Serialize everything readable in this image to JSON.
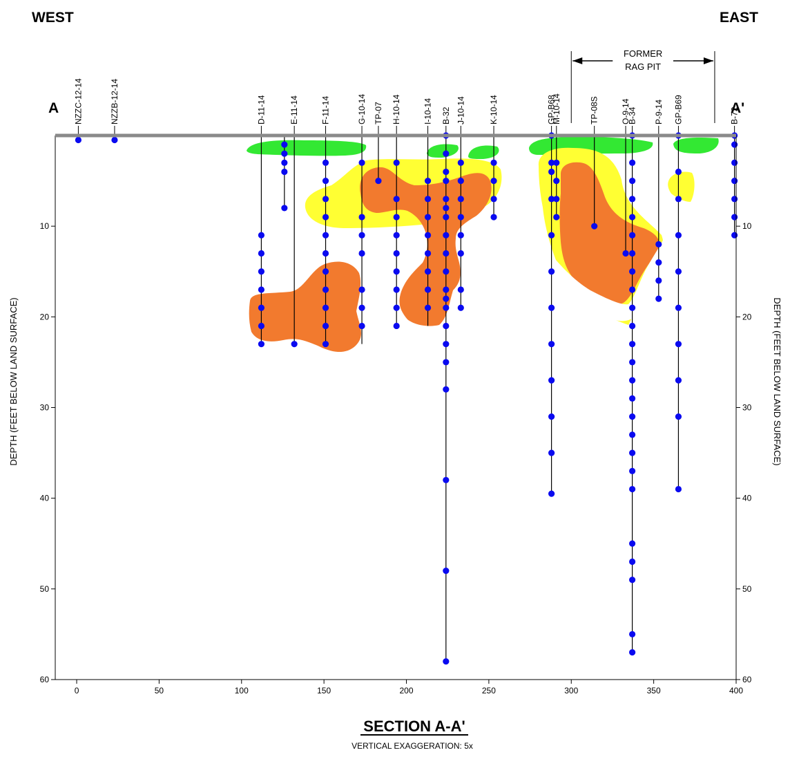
{
  "chart_data": {
    "type": "scatter",
    "title": "SECTION A-A'",
    "subtitle": "VERTICAL EXAGGERATION: 5x",
    "left_label": "WEST",
    "right_label": "EAST",
    "section_start": "A",
    "section_end": "A'",
    "ylabel_left": "DEPTH (FEET BELOW LAND SURFACE)",
    "ylabel_right": "DEPTH (FEET BELOW LAND SURFACE)",
    "xlim": [
      -13,
      400
    ],
    "ylim": [
      0,
      60
    ],
    "x_ticks": [
      "0",
      "50",
      "100",
      "150",
      "200",
      "250",
      "300",
      "350",
      "400"
    ],
    "y_ticks": [
      "10",
      "20",
      "30",
      "40",
      "50",
      "60"
    ],
    "annotation": {
      "text_line1": "FORMER",
      "text_line2": "RAG PIT",
      "x_start": 300,
      "x_end": 387
    },
    "colors": {
      "green": "#33e833",
      "yellow": "#ffff33",
      "orange": "#f27a2e",
      "dots": "#0a0af0",
      "ground": "#8a8a8a"
    },
    "borings": [
      {
        "name": "NZZC-12-14",
        "x": 1,
        "bottom": 0.5,
        "samples": [
          0.5
        ]
      },
      {
        "name": "NZZB-12-14",
        "x": 23,
        "bottom": 0.5,
        "samples": [
          0.5
        ]
      },
      {
        "name": "D-11-14",
        "x": 112,
        "bottom": 23,
        "samples": [
          11,
          13,
          15,
          17,
          19,
          21,
          23
        ]
      },
      {
        "name": "E-11-14",
        "x": 132,
        "bottom": 23,
        "samples": [
          23
        ]
      },
      {
        "name": "",
        "x": 126,
        "bottom": 8,
        "samples": [
          1,
          2,
          3,
          4,
          8
        ]
      },
      {
        "name": "F-11-14",
        "x": 151,
        "bottom": 23,
        "samples": [
          3,
          5,
          7,
          9,
          11,
          13,
          15,
          17,
          19,
          21,
          23
        ]
      },
      {
        "name": "G-10-14",
        "x": 173,
        "bottom": 23,
        "samples": [
          3,
          9,
          11,
          13,
          17,
          19,
          21
        ]
      },
      {
        "name": "TP-07",
        "x": 183,
        "bottom": 5,
        "samples": [
          5
        ]
      },
      {
        "name": "H-10-14",
        "x": 194,
        "bottom": 21,
        "samples": [
          3,
          7,
          9,
          11,
          13,
          15,
          17,
          19,
          21
        ]
      },
      {
        "name": "I-10-14",
        "x": 213,
        "bottom": 21,
        "samples": [
          5,
          7,
          9,
          11,
          13,
          15,
          17,
          19
        ]
      },
      {
        "name": "B-32",
        "x": 224,
        "bottom": 58,
        "samples": [
          0,
          2,
          4,
          5,
          7,
          8,
          9,
          11,
          13,
          15,
          17,
          18,
          19,
          21,
          23,
          25,
          28,
          38,
          48,
          58
        ]
      },
      {
        "name": "J-10-14",
        "x": 233,
        "bottom": 19,
        "samples": [
          3,
          5,
          7,
          9,
          11,
          13,
          17,
          19
        ]
      },
      {
        "name": "K-10-14",
        "x": 253,
        "bottom": 9,
        "samples": [
          3,
          5,
          7,
          9
        ]
      },
      {
        "name": "GP-B68",
        "x": 288,
        "bottom": 39.5,
        "samples": [
          0,
          3,
          4,
          7,
          11,
          15,
          19,
          23,
          27,
          31,
          35,
          39.5
        ]
      },
      {
        "name": "M-10-14",
        "x": 291,
        "bottom": 9,
        "samples": [
          3,
          5,
          7,
          9
        ]
      },
      {
        "name": "TP-08S",
        "x": 314,
        "bottom": 10,
        "samples": [
          10
        ]
      },
      {
        "name": "O-9-14",
        "x": 333,
        "bottom": 13,
        "samples": [
          13
        ]
      },
      {
        "name": "B-34",
        "x": 337,
        "bottom": 57,
        "samples": [
          0,
          3,
          5,
          7,
          9,
          11,
          13,
          15,
          17,
          19,
          21,
          23,
          25,
          27,
          29,
          31,
          33,
          35,
          37,
          39,
          45,
          47,
          49,
          55,
          57
        ]
      },
      {
        "name": "P-9-14",
        "x": 353,
        "bottom": 18,
        "samples": [
          12,
          14,
          16,
          18
        ]
      },
      {
        "name": "GP-B69",
        "x": 365,
        "bottom": 39,
        "samples": [
          0,
          4,
          7,
          11,
          15,
          19,
          23,
          27,
          31,
          39
        ]
      },
      {
        "name": "B-72",
        "x": 399,
        "bottom": 11,
        "samples": [
          0,
          1,
          3,
          5,
          7,
          9,
          11
        ]
      }
    ]
  }
}
